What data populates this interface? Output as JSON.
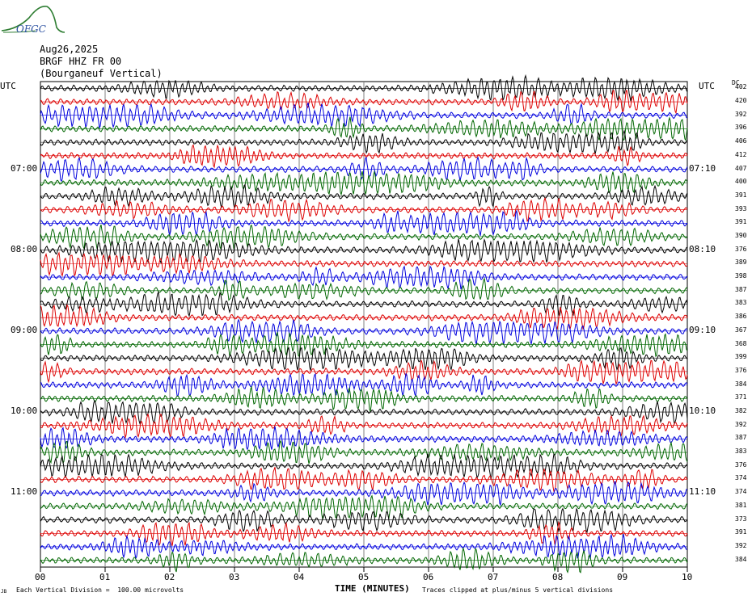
{
  "header": {
    "logo_text": "OFGC",
    "date": "Aug26,2025",
    "channel": "BRGF HHZ FR 00",
    "station": "(Bourganeuf Vertical)"
  },
  "axes": {
    "left_tz": "UTC",
    "right_tz": "UTC",
    "right_col": "DC",
    "xlabel": "TIME (MINUTES)"
  },
  "footer": {
    "left_note": "Each Vertical Division =  100.00 microvolts",
    "right_note": "Traces clipped at plus/minus 5 vertical divisions",
    "corner": "JB"
  },
  "colors": {
    "trace_cycle": [
      "#000000",
      "#dd0000",
      "#0000dd",
      "#006600"
    ],
    "grid": "#808080"
  },
  "chart_data": {
    "type": "line",
    "title": "BRGF HHZ FR 00 (Bourganeuf Vertical)",
    "subtitle": "Aug26,2025",
    "xlabel": "TIME (MINUTES)",
    "xlim": [
      0,
      10
    ],
    "x_ticks": [
      "00",
      "01",
      "02",
      "03",
      "04",
      "05",
      "06",
      "07",
      "08",
      "09",
      "10"
    ],
    "minutes_per_trace": 10,
    "trace_count": 36,
    "left_time_labels": [
      {
        "trace": 6,
        "label": "07:00"
      },
      {
        "trace": 12,
        "label": "08:00"
      },
      {
        "trace": 18,
        "label": "09:00"
      },
      {
        "trace": 24,
        "label": "10:00"
      },
      {
        "trace": 30,
        "label": "11:00"
      }
    ],
    "right_time_labels": [
      {
        "trace": 6,
        "label": "07:10"
      },
      {
        "trace": 12,
        "label": "08:10"
      },
      {
        "trace": 18,
        "label": "09:10"
      },
      {
        "trace": 24,
        "label": "10:10"
      },
      {
        "trace": 30,
        "label": "11:10"
      }
    ],
    "dc_offsets": [
      402,
      420,
      392,
      396,
      406,
      412,
      407,
      400,
      391,
      393,
      391,
      390,
      376,
      389,
      398,
      387,
      383,
      386,
      367,
      368,
      399,
      376,
      384,
      371,
      382,
      392,
      387,
      383,
      376,
      374,
      374,
      381,
      373,
      391,
      392,
      384
    ],
    "grid": true,
    "units": "microvolts",
    "vertical_division_microvolts": 100.0,
    "clip_divisions": 5
  }
}
